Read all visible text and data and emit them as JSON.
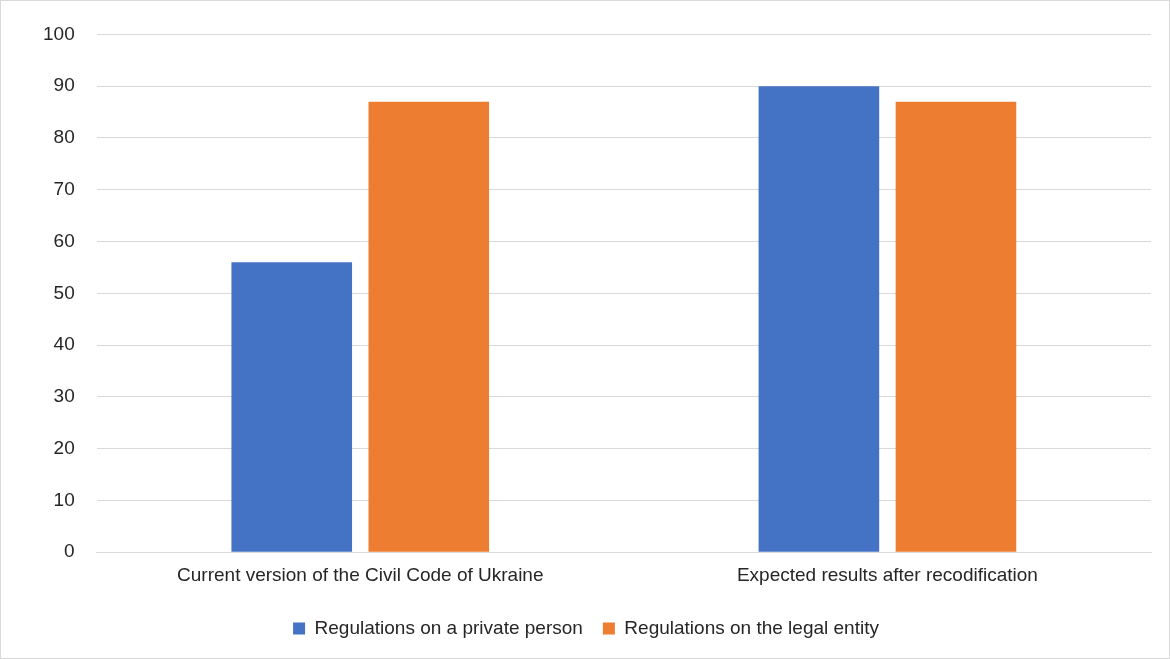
{
  "chart_data": {
    "type": "bar",
    "categories": [
      "Current version of the Civil Code of Ukraine",
      "Expected results after recodification"
    ],
    "series": [
      {
        "name": "Regulations on a private person",
        "color": "#4472c4",
        "values": [
          56,
          90
        ]
      },
      {
        "name": "Regulations on the legal entity",
        "color": "#ed7d31",
        "values": [
          87,
          87
        ]
      }
    ],
    "ylim": [
      0,
      100
    ],
    "yticks": [
      0,
      10,
      20,
      30,
      40,
      50,
      60,
      70,
      80,
      90,
      100
    ],
    "grid": "y",
    "legend": "bottom"
  }
}
